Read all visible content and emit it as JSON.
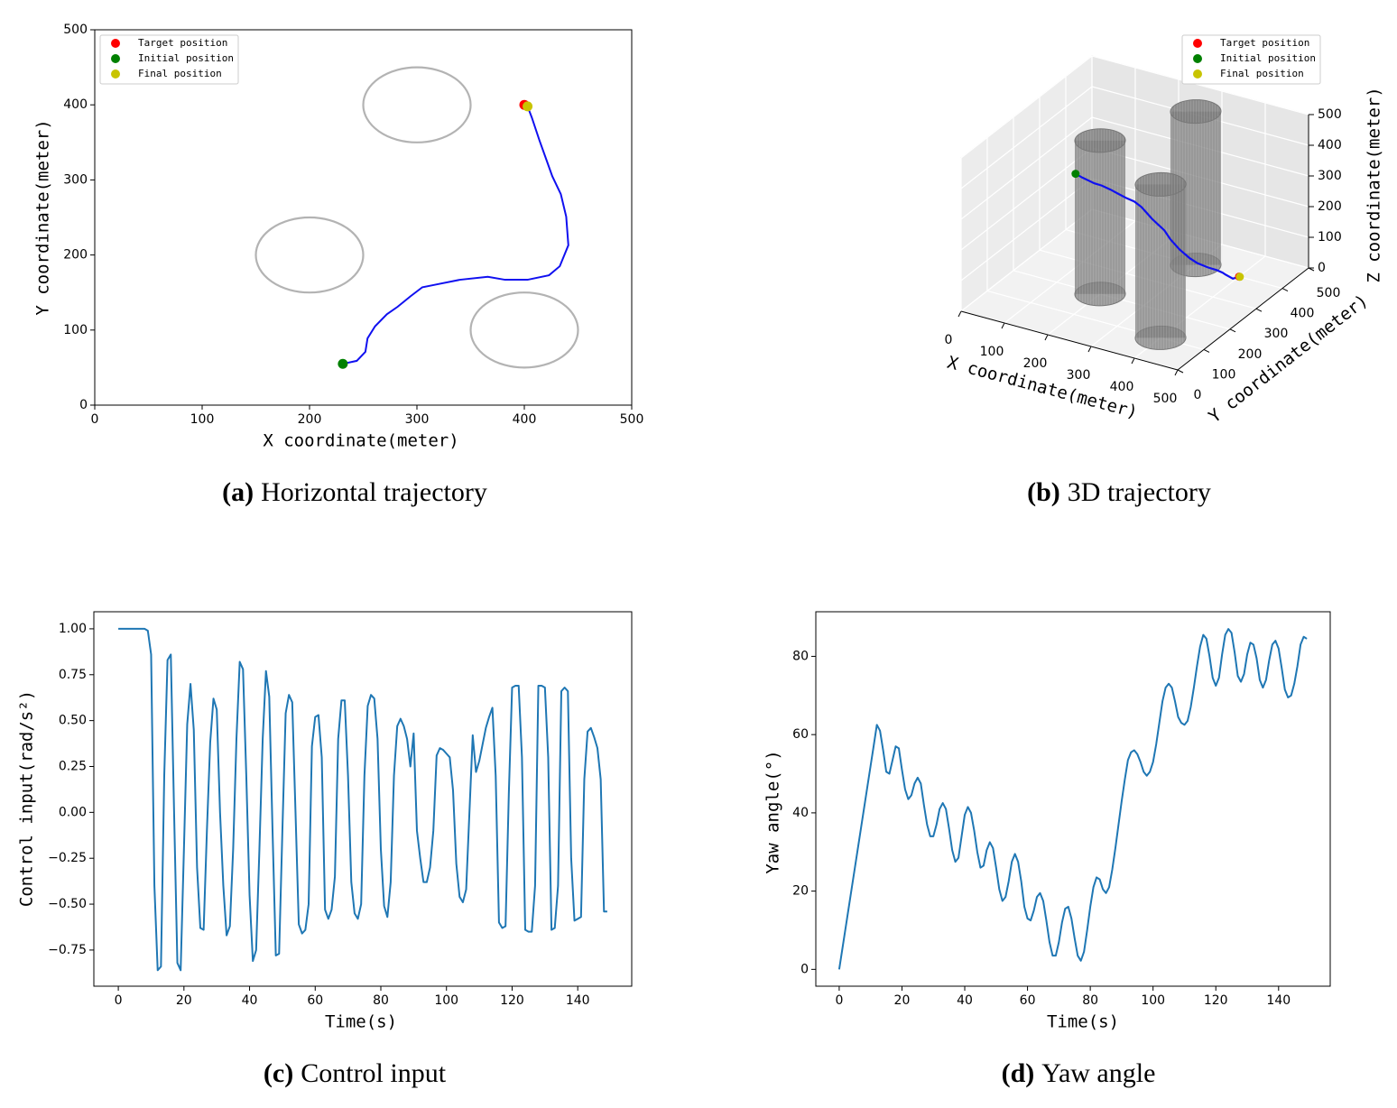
{
  "chart_data": [
    {
      "type": "trajectory",
      "caption_label": "(a)",
      "caption": "Horizontal trajectory",
      "xlabel": "X coordinate(meter)",
      "ylabel": "Y coordinate(meter)",
      "xlim": [
        0,
        500
      ],
      "ylim": [
        0,
        500
      ],
      "xticks": [
        0,
        100,
        200,
        300,
        400,
        500
      ],
      "yticks": [
        0,
        100,
        200,
        300,
        400,
        500
      ],
      "obstacles": {
        "color": "#b3b3b3",
        "x": [
          300,
          200,
          400
        ],
        "y": [
          400,
          200,
          100
        ],
        "r": [
          50,
          50,
          50
        ]
      },
      "path": {
        "color": "#1010f0",
        "x": [
          231,
          244,
          252,
          254,
          261,
          272,
          282,
          294,
          305,
          319,
          340,
          366,
          382,
          403,
          423,
          433,
          441,
          439,
          434,
          426,
          420,
          414,
          407,
          403
        ],
        "y": [
          55,
          59,
          71,
          89,
          105,
          121,
          131,
          145,
          157,
          161,
          167,
          171,
          167,
          167,
          173,
          185,
          213,
          251,
          281,
          305,
          329,
          353,
          383,
          398
        ]
      },
      "points": [
        {
          "name": "Target position",
          "color": "#ff0000",
          "x": 400,
          "y": 400
        },
        {
          "name": "Initial position",
          "color": "#008000",
          "x": 231,
          "y": 55
        },
        {
          "name": "Final position",
          "color": "#c8c400",
          "x": 403,
          "y": 398
        }
      ],
      "legend": "upper left"
    },
    {
      "type": "trajectory3d",
      "caption_label": "(b)",
      "caption": "3D trajectory",
      "xlabel": "X coordinate(meter)",
      "ylabel": "Y coordinate(meter)",
      "zlabel": "Z coordinate(meter)",
      "xlim": [
        0,
        500
      ],
      "ylim": [
        0,
        500
      ],
      "zlim": [
        0,
        500
      ],
      "xticks": [
        0,
        100,
        200,
        300,
        400,
        500
      ],
      "yticks": [
        0,
        100,
        200,
        300,
        400,
        500
      ],
      "zticks": [
        0,
        100,
        200,
        300,
        400,
        500
      ],
      "grid": true,
      "obstacles": {
        "color": "#808080",
        "x": [
          300,
          200,
          400
        ],
        "y": [
          400,
          200,
          100
        ],
        "r": [
          50,
          50,
          50
        ],
        "h": [
          500,
          500,
          500
        ]
      },
      "path": {
        "color": "#1010f0",
        "x": [
          231,
          244,
          252,
          254,
          261,
          272,
          282,
          294,
          305,
          319,
          340,
          366,
          382,
          403,
          423,
          433,
          441,
          439,
          434,
          426,
          420,
          414,
          407,
          403
        ],
        "y": [
          55,
          59,
          71,
          89,
          105,
          121,
          131,
          145,
          157,
          161,
          167,
          171,
          167,
          167,
          173,
          185,
          213,
          251,
          281,
          305,
          329,
          353,
          383,
          398
        ],
        "z": [
          500,
          490,
          475,
          455,
          440,
          420,
          405,
          385,
          370,
          355,
          320,
          290,
          270,
          245,
          220,
          200,
          170,
          135,
          105,
          80,
          55,
          30,
          12,
          2
        ]
      },
      "points": [
        {
          "name": "Target position",
          "color": "#ff0000",
          "x": 400,
          "y": 400,
          "z": 0
        },
        {
          "name": "Initial position",
          "color": "#008000",
          "x": 231,
          "y": 55,
          "z": 500
        },
        {
          "name": "Final position",
          "color": "#c8c400",
          "x": 403,
          "y": 398,
          "z": 2
        }
      ],
      "legend": "upper right"
    },
    {
      "type": "line",
      "caption_label": "(c)",
      "caption": "Control input",
      "xlabel": "Time(s)",
      "ylabel": "Control input(rad/s²)",
      "color": "#1f77b4",
      "xlim": [
        -7.45,
        156.45
      ],
      "ylim": [
        -0.947,
        1.093
      ],
      "xticks": [
        0,
        20,
        40,
        60,
        80,
        100,
        120,
        140
      ],
      "yticks": [
        {
          "value": 1,
          "label": "1.00"
        },
        {
          "value": 0.75,
          "label": "0.75"
        },
        {
          "value": 0.5,
          "label": "0.50"
        },
        {
          "value": 0.25,
          "label": "0.25"
        },
        {
          "value": 0,
          "label": "0.00"
        },
        {
          "value": -0.25,
          "label": "−0.25"
        },
        {
          "value": -0.5,
          "label": "−0.50"
        },
        {
          "value": -0.75,
          "label": "−0.75"
        }
      ],
      "x": [
        0,
        1,
        2,
        3,
        4,
        5,
        6,
        7,
        8,
        9,
        10,
        11,
        12,
        13,
        14,
        15,
        16,
        17,
        18,
        19,
        20,
        21,
        22,
        23,
        24,
        25,
        26,
        27,
        28,
        29,
        30,
        31,
        32,
        33,
        34,
        35,
        36,
        37,
        38,
        39,
        40,
        41,
        42,
        43,
        44,
        45,
        46,
        47,
        48,
        49,
        50,
        51,
        52,
        53,
        54,
        55,
        56,
        57,
        58,
        59,
        60,
        61,
        62,
        63,
        64,
        65,
        66,
        67,
        68,
        69,
        70,
        71,
        72,
        73,
        74,
        75,
        76,
        77,
        78,
        79,
        80,
        81,
        82,
        83,
        84,
        85,
        86,
        87,
        88,
        89,
        90,
        91,
        92,
        93,
        94,
        95,
        96,
        97,
        98,
        99,
        100,
        101,
        102,
        103,
        104,
        105,
        106,
        107,
        108,
        109,
        110,
        111,
        112,
        113,
        114,
        115,
        116,
        117,
        118,
        119,
        120,
        121,
        122,
        123,
        124,
        125,
        126,
        127,
        128,
        129,
        130,
        131,
        132,
        133,
        134,
        135,
        136,
        137,
        138,
        139,
        140,
        141,
        142,
        143,
        144,
        145,
        146,
        147,
        148,
        149
      ],
      "values": [
        1,
        1,
        1,
        1,
        1,
        1,
        1,
        1,
        1,
        0.99,
        0.86,
        -0.4,
        -0.86,
        -0.84,
        0.2,
        0.83,
        0.86,
        0,
        -0.82,
        -0.86,
        -0.2,
        0.48,
        0.7,
        0.45,
        -0.3,
        -0.63,
        -0.64,
        -0.1,
        0.38,
        0.62,
        0.56,
        0,
        -0.4,
        -0.67,
        -0.62,
        -0.2,
        0.4,
        0.82,
        0.78,
        0.2,
        -0.45,
        -0.81,
        -0.75,
        -0.2,
        0.4,
        0.77,
        0.63,
        -0.1,
        -0.78,
        -0.77,
        -0.1,
        0.54,
        0.64,
        0.6,
        0,
        -0.61,
        -0.66,
        -0.64,
        -0.5,
        0.36,
        0.52,
        0.53,
        0.3,
        -0.53,
        -0.58,
        -0.53,
        -0.35,
        0.4,
        0.61,
        0.61,
        0.2,
        -0.38,
        -0.55,
        -0.58,
        -0.5,
        0.2,
        0.58,
        0.64,
        0.62,
        0.4,
        -0.2,
        -0.51,
        -0.57,
        -0.38,
        0.2,
        0.47,
        0.51,
        0.47,
        0.4,
        0.25,
        0.43,
        -0.1,
        -0.25,
        -0.38,
        -0.38,
        -0.3,
        -0.1,
        0.31,
        0.35,
        0.34,
        0.32,
        0.3,
        0.12,
        -0.28,
        -0.46,
        -0.49,
        -0.42,
        0,
        0.42,
        0.22,
        0.28,
        0.37,
        0.46,
        0.52,
        0.57,
        0.2,
        -0.6,
        -0.63,
        -0.62,
        0.1,
        0.68,
        0.69,
        0.69,
        0.3,
        -0.64,
        -0.65,
        -0.65,
        -0.4,
        0.69,
        0.69,
        0.68,
        0.3,
        -0.64,
        -0.63,
        -0.4,
        0.66,
        0.68,
        0.66,
        -0.25,
        -0.59,
        -0.58,
        -0.57,
        0.18,
        0.44,
        0.46,
        0.41,
        0.35,
        0.18,
        -0.54,
        -0.54
      ]
    },
    {
      "type": "line",
      "caption_label": "(d)",
      "caption": "Yaw angle",
      "xlabel": "Time(s)",
      "ylabel": "Yaw angle(°)",
      "color": "#1f77b4",
      "xlim": [
        -7.45,
        156.45
      ],
      "ylim": [
        -4.3,
        91.4
      ],
      "xticks": [
        0,
        20,
        40,
        60,
        80,
        100,
        120,
        140
      ],
      "yticks": [
        0,
        20,
        40,
        60,
        80
      ],
      "x": [
        0,
        1,
        2,
        3,
        4,
        5,
        6,
        7,
        8,
        9,
        10,
        11,
        12,
        13,
        14,
        15,
        16,
        17,
        18,
        19,
        20,
        21,
        22,
        23,
        24,
        25,
        26,
        27,
        28,
        29,
        30,
        31,
        32,
        33,
        34,
        35,
        36,
        37,
        38,
        39,
        40,
        41,
        42,
        43,
        44,
        45,
        46,
        47,
        48,
        49,
        50,
        51,
        52,
        53,
        54,
        55,
        56,
        57,
        58,
        59,
        60,
        61,
        62,
        63,
        64,
        65,
        66,
        67,
        68,
        69,
        70,
        71,
        72,
        73,
        74,
        75,
        76,
        77,
        78,
        79,
        80,
        81,
        82,
        83,
        84,
        85,
        86,
        87,
        88,
        89,
        90,
        91,
        92,
        93,
        94,
        95,
        96,
        97,
        98,
        99,
        100,
        101,
        102,
        103,
        104,
        105,
        106,
        107,
        108,
        109,
        110,
        111,
        112,
        113,
        114,
        115,
        116,
        117,
        118,
        119,
        120,
        121,
        122,
        123,
        124,
        125,
        126,
        127,
        128,
        129,
        130,
        131,
        132,
        133,
        134,
        135,
        136,
        137,
        138,
        139,
        140,
        141,
        142,
        143,
        144,
        145,
        146,
        147,
        148,
        149
      ],
      "values": [
        0,
        5.2,
        10.4,
        15.6,
        20.8,
        26,
        31.2,
        36.4,
        41.6,
        46.8,
        52,
        57.2,
        62.5,
        61,
        56,
        50.5,
        50,
        53.5,
        57,
        56.5,
        51,
        46,
        43.5,
        44.5,
        47.5,
        49,
        47.5,
        42,
        37,
        34,
        34,
        37,
        41,
        42.5,
        41,
        36,
        30.5,
        27.5,
        28.5,
        34,
        39.5,
        41.5,
        40,
        35.5,
        30,
        26,
        26.5,
        30.5,
        32.5,
        31,
        26,
        20.5,
        17.5,
        18.5,
        22.5,
        27.5,
        29.5,
        27.5,
        22.5,
        16,
        13,
        12.5,
        15,
        18.5,
        19.5,
        17.5,
        12.5,
        7,
        3.5,
        3.5,
        7,
        12,
        15.5,
        16,
        13,
        8,
        3.5,
        2.2,
        4.5,
        10,
        16,
        21,
        23.5,
        23,
        20.5,
        19.5,
        21,
        25.5,
        31,
        37,
        43,
        48.5,
        53.5,
        55.5,
        56,
        55,
        53,
        50.5,
        49.5,
        50.5,
        53,
        57.5,
        63,
        68.5,
        72,
        73,
        72,
        68.5,
        64.5,
        63,
        62.5,
        63.5,
        67,
        72,
        77.5,
        82.5,
        85.5,
        84.5,
        80,
        74.5,
        72.5,
        74.5,
        80.5,
        85.5,
        87,
        86,
        81,
        75,
        73.5,
        75.5,
        80.5,
        83.5,
        83,
        79.5,
        74,
        72,
        74,
        79,
        83,
        84,
        82,
        77,
        71.5,
        69.5,
        70,
        73,
        77.5,
        83,
        85,
        84.5
      ]
    }
  ]
}
